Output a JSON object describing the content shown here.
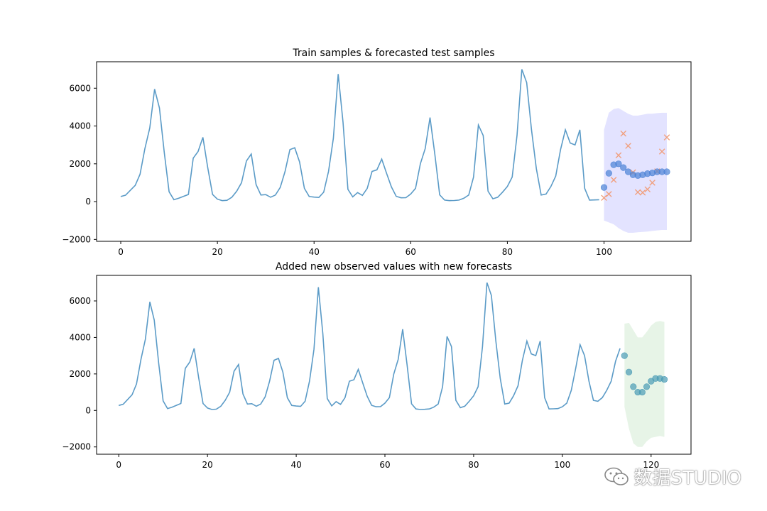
{
  "chart_data": [
    {
      "type": "line",
      "title": "Train samples & forecasted test samples",
      "xlim": [
        -5,
        118
      ],
      "ylim": [
        -2100,
        7400
      ],
      "xticks": [
        0,
        20,
        40,
        60,
        80,
        100
      ],
      "yticks": [
        -2000,
        0,
        2000,
        4000,
        6000
      ],
      "grid": false,
      "series": [
        {
          "kind": "line",
          "color": "#5b9bc7",
          "x_start": 0,
          "values": [
            270,
            340,
            600,
            860,
            1450,
            2800,
            3900,
            5950,
            4950,
            2600,
            520,
            100,
            180,
            280,
            380,
            2300,
            2650,
            3400,
            1800,
            380,
            130,
            50,
            70,
            230,
            550,
            1000,
            2150,
            2520,
            900,
            350,
            370,
            230,
            350,
            750,
            1600,
            2750,
            2850,
            2100,
            700,
            270,
            240,
            220,
            500,
            1600,
            3350,
            6750,
            4200,
            650,
            250,
            480,
            330,
            700,
            1600,
            1680,
            2250,
            1500,
            780,
            280,
            200,
            210,
            400,
            700,
            2000,
            2800,
            4450,
            2500,
            360,
            80,
            50,
            60,
            80,
            180,
            350,
            1300,
            4050,
            3500,
            550,
            150,
            230,
            500,
            800,
            1300,
            3500,
            7000,
            6300,
            3800,
            1750,
            350,
            400,
            800,
            1350,
            2750,
            3800,
            3100,
            3000,
            3800,
            700,
            80,
            90,
            100
          ]
        },
        {
          "kind": "scatter_o",
          "color": "#4a82d6",
          "x_start": 100,
          "values": [
            750,
            1500,
            1950,
            2000,
            1800,
            1580,
            1420,
            1380,
            1420,
            1480,
            1520,
            1580,
            1580,
            1580
          ]
        },
        {
          "kind": "scatter_x",
          "color": "#f0a080",
          "x_start": 100,
          "values": [
            200,
            400,
            1150,
            2450,
            3600,
            2950,
            1550,
            500,
            480,
            650,
            1000,
            1600,
            2650,
            3400
          ]
        },
        {
          "kind": "band",
          "color": "#8080ff",
          "x_start": 100,
          "upper": [
            3800,
            4700,
            4900,
            4950,
            4800,
            4650,
            4550,
            4550,
            4600,
            4650,
            4650,
            4680,
            4700,
            4700
          ],
          "lower": [
            -1000,
            -1100,
            -1200,
            -1400,
            -1550,
            -1650,
            -1650,
            -1620,
            -1600,
            -1580,
            -1550,
            -1520,
            -1500,
            -1500
          ]
        }
      ]
    },
    {
      "type": "line",
      "title": "Added new observed values with new forecasts",
      "xlim": [
        -5,
        129
      ],
      "ylim": [
        -2400,
        7400
      ],
      "xticks": [
        0,
        20,
        40,
        60,
        80,
        100,
        120
      ],
      "yticks": [
        -2000,
        0,
        2000,
        4000,
        6000
      ],
      "grid": false,
      "series": [
        {
          "kind": "line",
          "color": "#5b9bc7",
          "x_start": 0,
          "values": [
            270,
            340,
            600,
            860,
            1450,
            2800,
            3900,
            5950,
            4950,
            2600,
            520,
            100,
            180,
            280,
            380,
            2300,
            2650,
            3400,
            1800,
            380,
            130,
            50,
            70,
            230,
            550,
            1000,
            2150,
            2520,
            900,
            350,
            370,
            230,
            350,
            750,
            1600,
            2750,
            2850,
            2100,
            700,
            270,
            240,
            220,
            500,
            1600,
            3350,
            6750,
            4200,
            650,
            250,
            480,
            330,
            700,
            1600,
            1680,
            2250,
            1500,
            780,
            280,
            200,
            210,
            400,
            700,
            2000,
            2800,
            4450,
            2500,
            360,
            80,
            50,
            60,
            80,
            180,
            350,
            1300,
            4050,
            3500,
            550,
            150,
            230,
            500,
            800,
            1300,
            3500,
            7000,
            6300,
            3800,
            1750,
            350,
            400,
            800,
            1350,
            2750,
            3800,
            3100,
            3000,
            3800,
            700,
            80,
            90,
            100,
            200,
            400,
            1100,
            2300,
            3600,
            3000,
            1600,
            550,
            500,
            700,
            1100,
            1600,
            2700,
            3400
          ]
        },
        {
          "kind": "scatter_o",
          "color": "#4a9bb5",
          "x_start": 114,
          "values": [
            3000,
            2100,
            1300,
            1000,
            1000,
            1300,
            1600,
            1750,
            1750,
            1700
          ]
        },
        {
          "kind": "band",
          "color": "#90cc90",
          "x_start": 114,
          "upper": [
            4750,
            4800,
            4400,
            4000,
            4000,
            4300,
            4650,
            4850,
            4900,
            4850
          ],
          "lower": [
            200,
            -1000,
            -1800,
            -2000,
            -2000,
            -1700,
            -1500,
            -1450,
            -1400,
            -1450
          ]
        }
      ]
    }
  ],
  "watermark": {
    "text": "数据STUDIO",
    "icon": "wechat-icon"
  }
}
